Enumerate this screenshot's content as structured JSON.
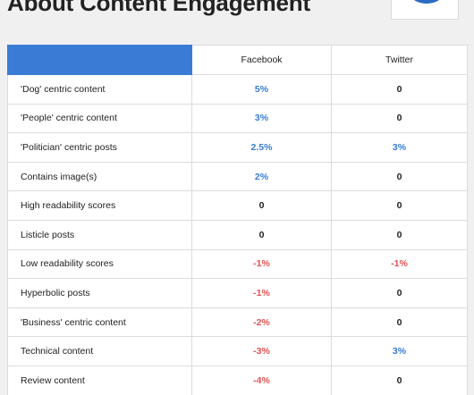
{
  "page": {
    "title": "About Content Engagement"
  },
  "colors": {
    "header_blue": "#3a7bd5",
    "positive": "#3a7bd5",
    "negative": "#e05252",
    "neutral": "#222222"
  },
  "table": {
    "columns": [
      "",
      "Facebook",
      "Twitter"
    ],
    "rows": [
      {
        "label": "'Dog' centric content",
        "facebook": "5%",
        "twitter": "0"
      },
      {
        "label": "'People' centric content",
        "facebook": "3%",
        "twitter": "0"
      },
      {
        "label": "'Politician' centric posts",
        "facebook": "2.5%",
        "twitter": "3%"
      },
      {
        "label": "Contains image(s)",
        "facebook": "2%",
        "twitter": "0"
      },
      {
        "label": "High readability scores",
        "facebook": "0",
        "twitter": "0"
      },
      {
        "label": "Listicle posts",
        "facebook": "0",
        "twitter": "0"
      },
      {
        "label": "Low readability scores",
        "facebook": "-1%",
        "twitter": "-1%"
      },
      {
        "label": "Hyperbolic posts",
        "facebook": "-1%",
        "twitter": "0"
      },
      {
        "label": "'Business' centric content",
        "facebook": "-2%",
        "twitter": "0"
      },
      {
        "label": "Technical content",
        "facebook": "-3%",
        "twitter": "3%"
      },
      {
        "label": "Review content",
        "facebook": "-4%",
        "twitter": "0"
      }
    ]
  }
}
